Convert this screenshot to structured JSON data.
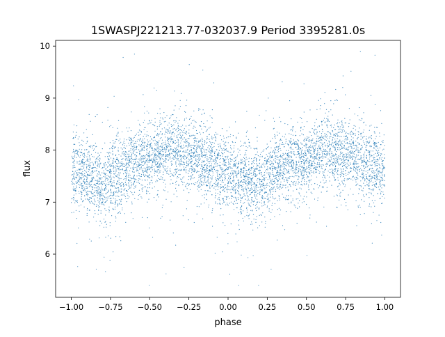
{
  "chart_data": {
    "type": "scatter",
    "title": "1SWASPJ221213.77-032037.9 Period 3395281.0s",
    "xlabel": "phase",
    "ylabel": "flux",
    "xlim": [
      -1.1,
      1.1
    ],
    "ylim": [
      5.17,
      10.11
    ],
    "xticks": [
      -1.0,
      -0.75,
      -0.5,
      -0.25,
      0.0,
      0.25,
      0.5,
      0.75,
      1.0
    ],
    "xtick_labels": [
      "−1.00",
      "−0.75",
      "−0.50",
      "−0.25",
      "0.00",
      "0.25",
      "0.50",
      "0.75",
      "1.00"
    ],
    "yticks": [
      6,
      7,
      8,
      9,
      10
    ],
    "ytick_labels": [
      "6",
      "7",
      "8",
      "9",
      "10"
    ],
    "grid": false,
    "legend": null,
    "color": "#1f77b4",
    "binned_mean": {
      "phase": [
        -1.0,
        -0.9,
        -0.8,
        -0.7,
        -0.6,
        -0.5,
        -0.4,
        -0.3,
        -0.2,
        -0.1,
        0.0,
        0.1,
        0.2,
        0.3,
        0.4,
        0.5,
        0.6,
        0.7,
        0.8,
        0.9,
        1.0
      ],
      "flux": [
        7.6,
        7.5,
        7.35,
        7.6,
        7.7,
        7.8,
        8.0,
        7.9,
        7.9,
        7.7,
        7.55,
        7.4,
        7.35,
        7.6,
        7.75,
        7.8,
        8.0,
        7.9,
        7.9,
        7.7,
        7.55
      ]
    },
    "scatter_sd": 0.35,
    "flux_range": [
      5.4,
      9.9
    ]
  }
}
